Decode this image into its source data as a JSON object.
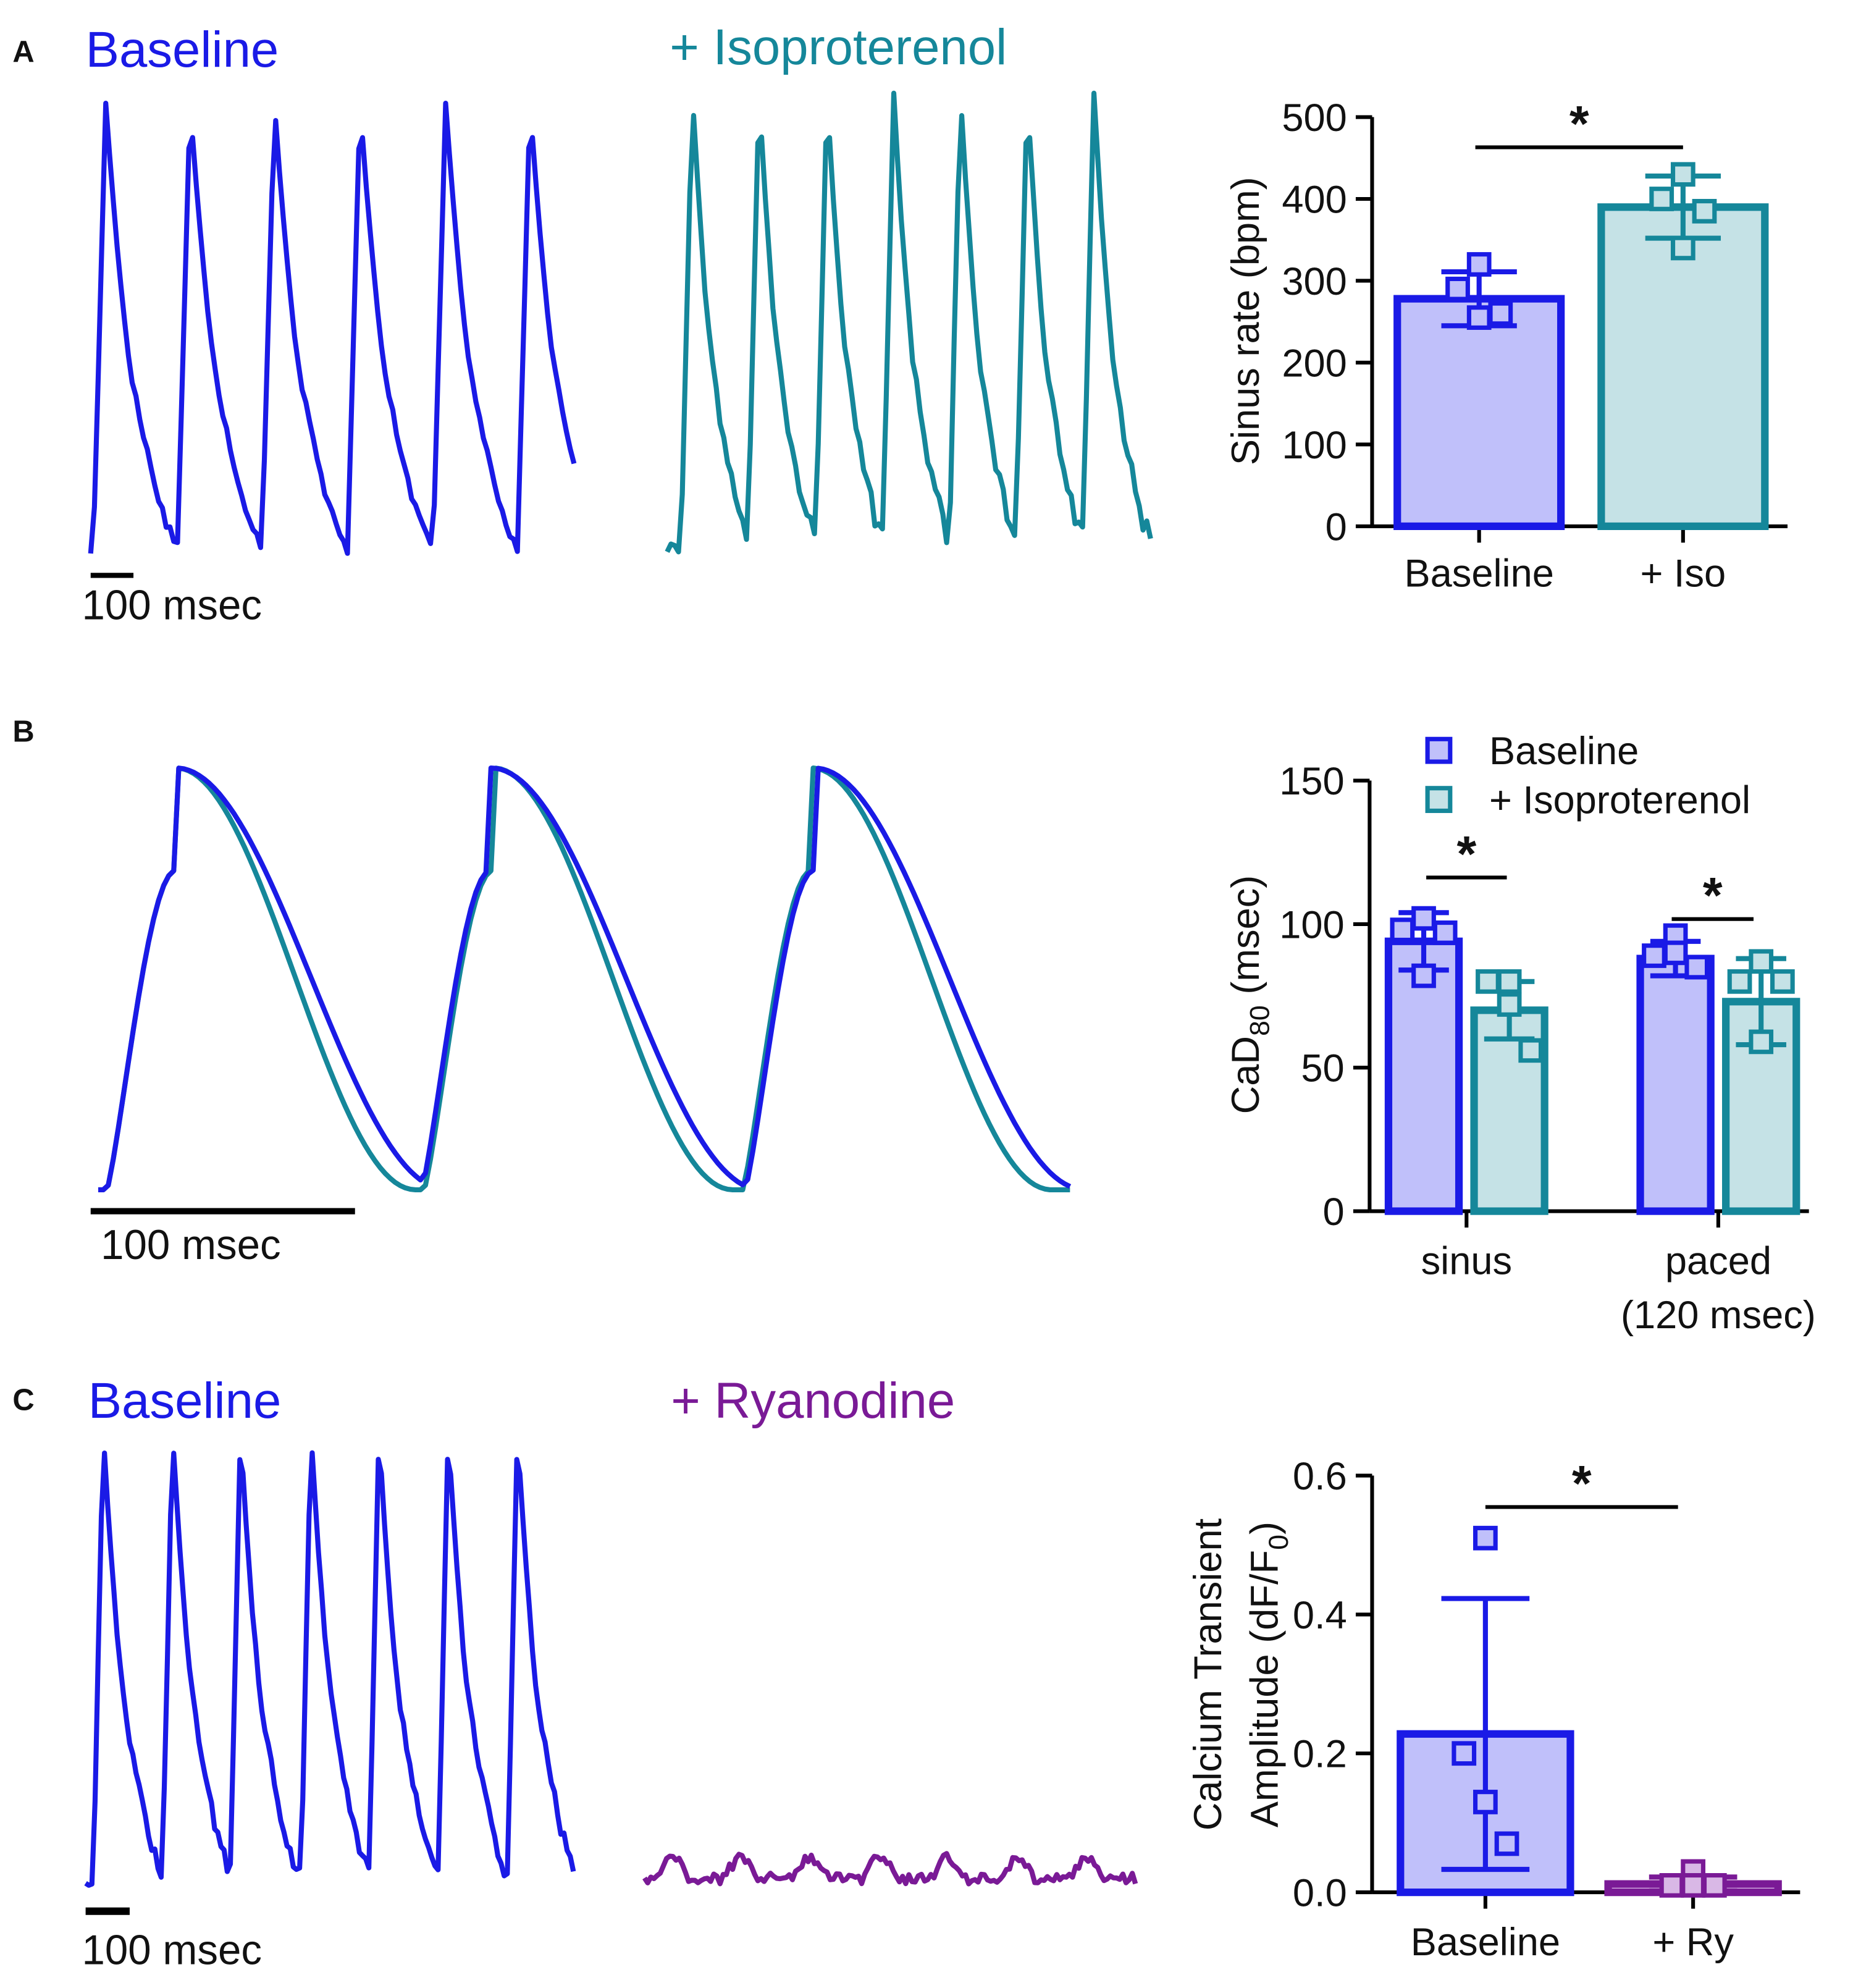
{
  "panels": [
    {
      "label": "A",
      "traces": [
        "Baseline",
        "+ Isoproterenol"
      ],
      "scale": "100 msec"
    },
    {
      "label": "B",
      "scale": "100 msec"
    },
    {
      "label": "C",
      "traces": [
        "Baseline",
        "+ Ryanodine"
      ],
      "scale": "100 msec"
    }
  ],
  "chart_data": [
    {
      "type": "bar",
      "ylabel": "Sinus rate (bpm)",
      "categories": [
        "Baseline",
        "+ Iso"
      ],
      "values": [
        278,
        390
      ],
      "errors": [
        33,
        38
      ],
      "points": [
        [
          320,
          290,
          255,
          260
        ],
        [
          430,
          400,
          340,
          385
        ]
      ],
      "colors": [
        "#1a1ae6",
        "#15879a"
      ],
      "fills": [
        "#c0c0fa",
        "#c5e2e6"
      ],
      "ylim": [
        0,
        500
      ],
      "yticks": [
        0,
        100,
        200,
        300,
        400,
        500
      ],
      "annotations": [
        "*"
      ]
    },
    {
      "type": "bar",
      "ylabel": [
        "CaD",
        "80",
        " (msec)"
      ],
      "categories": [
        "sinus",
        "paced (120 msec)"
      ],
      "series": [
        {
          "name": "Baseline",
          "color": "#1a1ae6",
          "fill": "#c0c0fa",
          "values": [
            94,
            88
          ],
          "errors": [
            10,
            6
          ],
          "points": [
            [
              102,
              98,
              82,
              97
            ],
            [
              96,
              89,
              90,
              85
            ]
          ]
        },
        {
          "name": "+ Isoproterenol",
          "color": "#15879a",
          "fill": "#c5e2e6",
          "values": [
            70,
            73
          ],
          "errors": [
            10,
            15
          ],
          "points": [
            [
              80,
              80,
              72,
              56
            ],
            [
              87,
              80,
              59,
              80
            ]
          ]
        }
      ],
      "ylim": [
        0,
        150
      ],
      "yticks": [
        0,
        50,
        100,
        150
      ],
      "annotations": [
        "*",
        "*"
      ]
    },
    {
      "type": "bar",
      "ylabel": [
        "Calcium Transient",
        "Amplitude (dF/F",
        "0",
        ")"
      ],
      "categories": [
        "Baseline",
        "+ Ry"
      ],
      "values": [
        0.228,
        0.012
      ],
      "errors": [
        0.195,
        0.01
      ],
      "points": [
        [
          0.51,
          0.2,
          0.13,
          0.07
        ],
        [
          0.03,
          0.01,
          0.01,
          0.01
        ]
      ],
      "colors": [
        "#1a1ae6",
        "#7a1a96"
      ],
      "fills": [
        "#c0c0fa",
        "#d9b8e6"
      ],
      "ylim": [
        0,
        0.6
      ],
      "yticks": [
        {
          "value": 0,
          "label": "0.0"
        },
        0.2,
        0.4,
        0.6
      ],
      "annotations": [
        "*"
      ]
    }
  ]
}
